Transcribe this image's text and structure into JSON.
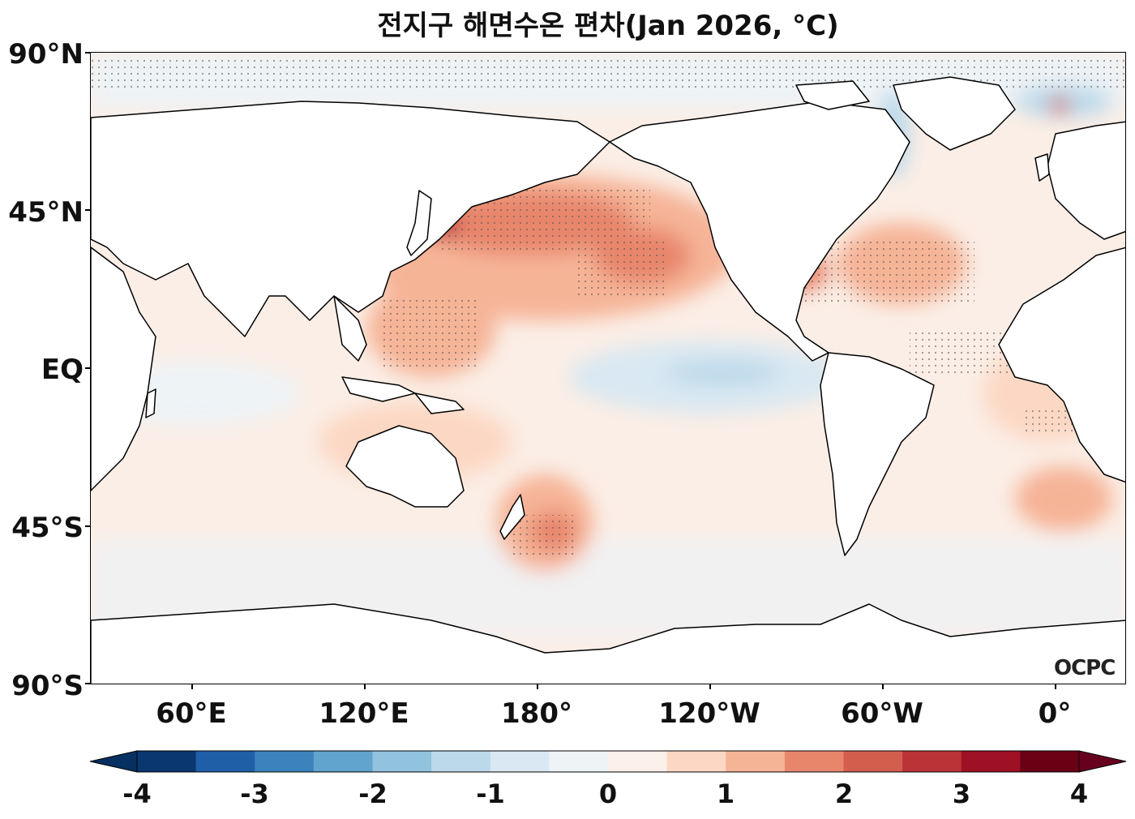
{
  "title": "전지구 해면수온 편차(Jan 2026, °C)",
  "logo_text": "OCPC",
  "lat_labels": [
    "90°N",
    "45°N",
    "EQ",
    "45°S",
    "90°S"
  ],
  "lon_labels": [
    "60°E",
    "120°E",
    "180°",
    "120°W",
    "60°W",
    "0°"
  ],
  "colorbar": {
    "ticks": [
      "-4",
      "-3",
      "-2",
      "-1",
      "0",
      "1",
      "2",
      "3",
      "4"
    ],
    "colors": [
      "#0a3770",
      "#1f5fa8",
      "#3c83bd",
      "#61a4cd",
      "#91c3de",
      "#bcd9ea",
      "#d9e8f2",
      "#eef3f6",
      "#fbf0ea",
      "#fcd8c4",
      "#f6b497",
      "#e8866c",
      "#d45e4e",
      "#bb3337",
      "#9e1023",
      "#6b0015"
    ],
    "extend_low": "#053061",
    "extend_high": "#67001f"
  }
}
